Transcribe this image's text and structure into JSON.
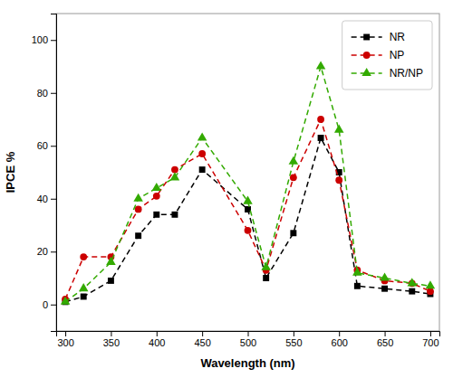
{
  "chart_data": {
    "type": "line",
    "xlabel": "Wavelength (nm)",
    "ylabel": "IPCE %",
    "x": [
      300,
      320,
      350,
      380,
      400,
      420,
      450,
      500,
      520,
      550,
      580,
      600,
      620,
      650,
      680,
      700
    ],
    "series": [
      {
        "name": "NR",
        "color": "#000000",
        "marker": "square",
        "line_style": "dashed",
        "values": [
          1,
          3,
          9,
          26,
          34,
          34,
          51,
          36,
          10,
          27,
          63,
          50,
          7,
          6,
          5,
          4
        ]
      },
      {
        "name": "NP",
        "color": "#cc0000",
        "marker": "circle",
        "line_style": "dashed",
        "values": [
          2,
          18,
          18,
          36,
          41,
          51,
          57,
          28,
          13,
          48,
          70,
          47,
          13,
          9,
          8,
          5
        ]
      },
      {
        "name": "NR/NP",
        "color": "#33aa00",
        "marker": "triangle",
        "line_style": "dashed",
        "values": [
          1,
          6,
          16,
          40,
          44,
          48,
          63,
          39,
          14,
          54,
          90,
          66,
          12,
          10,
          8,
          7
        ]
      }
    ],
    "xlim": [
      290,
      710
    ],
    "ylim": [
      -10,
      110
    ],
    "xticks": [
      300,
      350,
      400,
      450,
      500,
      550,
      600,
      650,
      700
    ],
    "yticks": [
      0,
      20,
      40,
      60,
      80,
      100
    ],
    "legend": "upper right",
    "grid": false
  }
}
